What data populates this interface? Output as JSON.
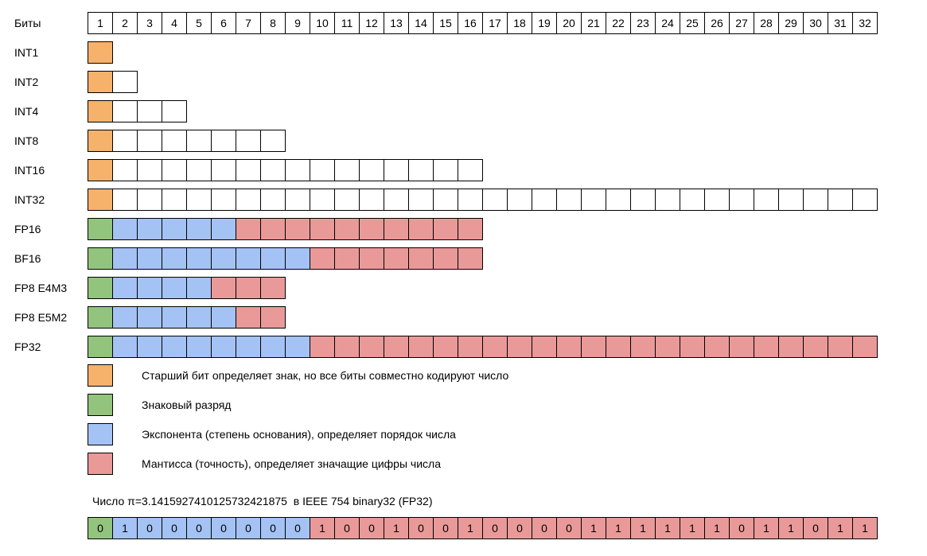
{
  "header": {
    "label": "Биты",
    "bits": [
      "1",
      "2",
      "3",
      "4",
      "5",
      "6",
      "7",
      "8",
      "9",
      "10",
      "11",
      "12",
      "13",
      "14",
      "15",
      "16",
      "17",
      "18",
      "19",
      "20",
      "21",
      "22",
      "23",
      "24",
      "25",
      "26",
      "27",
      "28",
      "29",
      "30",
      "31",
      "32"
    ]
  },
  "colors": {
    "orange": "#f6b26b",
    "green": "#93c47d",
    "blue": "#a4c2f4",
    "red": "#ea9999",
    "white": "#ffffff"
  },
  "formats": [
    {
      "label": "INT1",
      "segments": [
        {
          "type": "orange",
          "count": 1
        }
      ]
    },
    {
      "label": "INT2",
      "segments": [
        {
          "type": "orange",
          "count": 1
        },
        {
          "type": "white",
          "count": 1
        }
      ]
    },
    {
      "label": "INT4",
      "segments": [
        {
          "type": "orange",
          "count": 1
        },
        {
          "type": "white",
          "count": 3
        }
      ]
    },
    {
      "label": "INT8",
      "segments": [
        {
          "type": "orange",
          "count": 1
        },
        {
          "type": "white",
          "count": 7
        }
      ]
    },
    {
      "label": "INT16",
      "segments": [
        {
          "type": "orange",
          "count": 1
        },
        {
          "type": "white",
          "count": 15
        }
      ]
    },
    {
      "label": "INT32",
      "segments": [
        {
          "type": "orange",
          "count": 1
        },
        {
          "type": "white",
          "count": 31
        }
      ]
    },
    {
      "label": "FP16",
      "segments": [
        {
          "type": "green",
          "count": 1
        },
        {
          "type": "blue",
          "count": 5
        },
        {
          "type": "red",
          "count": 10
        }
      ]
    },
    {
      "label": "BF16",
      "segments": [
        {
          "type": "green",
          "count": 1
        },
        {
          "type": "blue",
          "count": 8
        },
        {
          "type": "red",
          "count": 7
        }
      ]
    },
    {
      "label": "FP8 E4M3",
      "segments": [
        {
          "type": "green",
          "count": 1
        },
        {
          "type": "blue",
          "count": 4
        },
        {
          "type": "red",
          "count": 3
        }
      ]
    },
    {
      "label": "FP8 E5M2",
      "segments": [
        {
          "type": "green",
          "count": 1
        },
        {
          "type": "blue",
          "count": 5
        },
        {
          "type": "red",
          "count": 2
        }
      ]
    },
    {
      "label": "FP32",
      "segments": [
        {
          "type": "green",
          "count": 1
        },
        {
          "type": "blue",
          "count": 8
        },
        {
          "type": "red",
          "count": 23
        }
      ]
    }
  ],
  "legend": [
    {
      "type": "orange",
      "text": "Старший бит определяет знак, но все биты совместно кодируют число"
    },
    {
      "type": "green",
      "text": "Знаковый разряд"
    },
    {
      "type": "blue",
      "text": "Экспонента (степень основания), определяет порядок числа"
    },
    {
      "type": "red",
      "text": "Мантисса (точность), определяет значащие цифры числа"
    }
  ],
  "pi": {
    "caption": "Число π=3.14159274101257324218​75  в IEEE 754 binary32 (FP32)",
    "bits": [
      "0",
      "1",
      "0",
      "0",
      "0",
      "0",
      "0",
      "0",
      "0",
      "1",
      "0",
      "0",
      "1",
      "0",
      "0",
      "1",
      "0",
      "0",
      "0",
      "0",
      "1",
      "1",
      "1",
      "1",
      "1",
      "1",
      "0",
      "1",
      "1",
      "0",
      "1",
      "1"
    ],
    "segments": [
      {
        "type": "green",
        "count": 1
      },
      {
        "type": "blue",
        "count": 8
      },
      {
        "type": "red",
        "count": 23
      }
    ]
  }
}
